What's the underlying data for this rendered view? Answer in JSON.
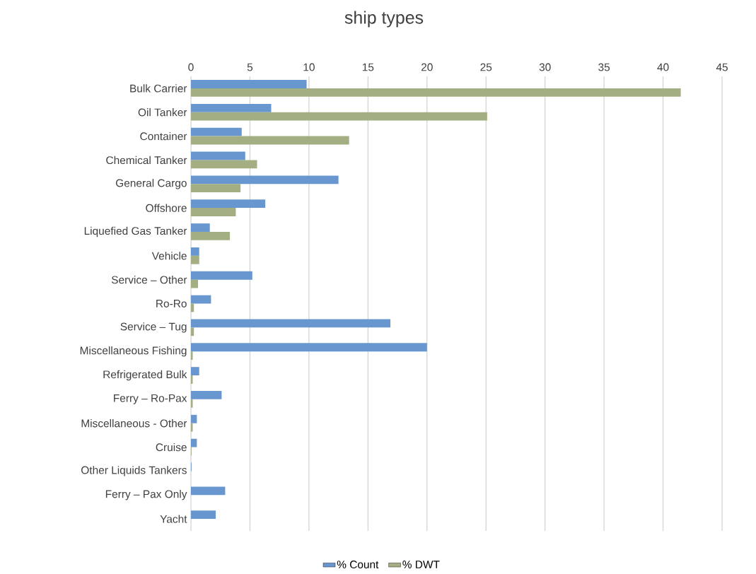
{
  "chart_data": {
    "type": "bar",
    "orientation": "horizontal",
    "title": "ship types",
    "categories": [
      "Bulk Carrier",
      "Oil Tanker",
      "Container",
      "Chemical Tanker",
      "General Cargo",
      "Offshore",
      "Liquefied Gas Tanker",
      "Vehicle",
      "Service – Other",
      "Ro-Ro",
      "Service – Tug",
      "Miscellaneous Fishing",
      "Refrigerated Bulk",
      "Ferry – Ro-Pax",
      "Miscellaneous - Other",
      "Cruise",
      "Other Liquids Tankers",
      "Ferry – Pax Only",
      "Yacht"
    ],
    "series": [
      {
        "name": "% Count",
        "color": "#6897d0",
        "values": [
          9.8,
          6.8,
          4.3,
          4.6,
          12.5,
          6.3,
          1.6,
          0.7,
          5.2,
          1.7,
          16.9,
          20.0,
          0.7,
          2.6,
          0.5,
          0.5,
          0.05,
          2.9,
          2.1
        ]
      },
      {
        "name": "% DWT",
        "color": "#a3ae83",
        "values": [
          41.5,
          25.1,
          13.4,
          5.6,
          4.2,
          3.8,
          3.3,
          0.7,
          0.6,
          0.25,
          0.25,
          0.15,
          0.15,
          0.15,
          0.15,
          0.05,
          null,
          null,
          null
        ]
      }
    ],
    "xlim": [
      0,
      45
    ],
    "xticks": [
      0,
      5,
      10,
      15,
      20,
      25,
      30,
      35,
      40,
      45
    ],
    "grid": "x",
    "legend": "bottom"
  }
}
